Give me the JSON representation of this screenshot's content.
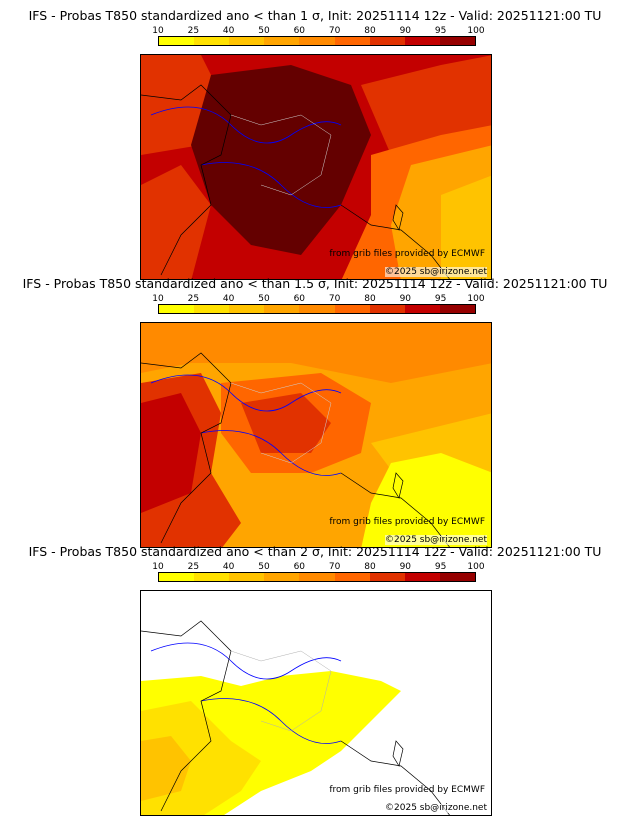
{
  "colorbar": {
    "ticks": [
      "10",
      "25",
      "40",
      "50",
      "60",
      "70",
      "80",
      "90",
      "95",
      "100"
    ],
    "colors": [
      "#ffff00",
      "#ffe100",
      "#ffc300",
      "#ffa500",
      "#ff8a00",
      "#ff6600",
      "#e13200",
      "#c30000",
      "#960000",
      "#640000"
    ]
  },
  "attribution": {
    "source": "from grib files provided by ECMWF",
    "copyright": "©2025 sb@irizone.net"
  },
  "panels": [
    {
      "title": "IFS - Probas T850  standardized ano < than 1 σ, Init: 20251114 12z - Valid: 20251121:00 TU",
      "threshold": "1 σ",
      "probability_fields": {
        "base": 90,
        "north_west": 95,
        "france_core": 100,
        "alps_italy": 50,
        "far_south_east": 25
      }
    },
    {
      "title": "IFS - Probas T850  standardized ano < than 1.5 σ, Init: 20251114 12z - Valid: 20251121:00 TU",
      "threshold": "1.5 σ",
      "probability_fields": {
        "base": 50,
        "west_france": 80,
        "central_france": 70,
        "spain_north": 80,
        "med": 10
      }
    },
    {
      "title": "IFS - Probas T850  standardized ano < than 2 σ, Init: 20251114 12z - Valid: 20251121:00 TU",
      "threshold": "2 σ",
      "probability_fields": {
        "base": 0,
        "france_south": 10,
        "spain": 25,
        "spain_core": 40
      }
    }
  ]
}
